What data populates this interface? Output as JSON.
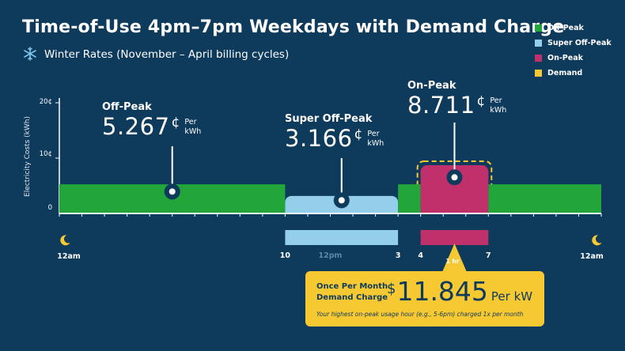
{
  "header": {
    "title": "Time-of-Use 4pm–7pm Weekdays with Demand Charge",
    "subtitle": "Winter Rates (November – April billing cycles)",
    "subtitle_icon": "snowflake-icon"
  },
  "legend": [
    {
      "label": "Off-Peak",
      "color": "#22a63a"
    },
    {
      "label": "Super Off-Peak",
      "color": "#93cfeb"
    },
    {
      "label": "On-Peak",
      "color": "#c0306a"
    },
    {
      "label": "Demand",
      "color": "#f6c832"
    }
  ],
  "chart_data": {
    "type": "area",
    "ylabel": "Electricity Costs (kWh)",
    "y_ticks": [
      "20¢",
      "10¢",
      "0"
    ],
    "ylim": [
      0,
      20
    ],
    "x_ticks": [
      {
        "label": "12am",
        "hour": 0
      },
      {
        "label": "10",
        "hour": 10
      },
      {
        "label": "12pm",
        "hour": 12
      },
      {
        "label": "3",
        "hour": 15
      },
      {
        "label": "4",
        "hour": 16
      },
      {
        "label": "7",
        "hour": 19
      },
      {
        "label": "12am",
        "hour": 24
      }
    ],
    "xlim": [
      0,
      24
    ],
    "periods": [
      {
        "name": "Off-Peak",
        "start": 0,
        "end": 10,
        "rate": 5.267,
        "color": "#22a63a"
      },
      {
        "name": "Super Off-Peak",
        "start": 10,
        "end": 15,
        "rate": 3.166,
        "color": "#93cfeb"
      },
      {
        "name": "Off-Peak",
        "start": 15,
        "end": 16,
        "rate": 5.267,
        "color": "#22a63a"
      },
      {
        "name": "On-Peak",
        "start": 16,
        "end": 19,
        "rate": 8.711,
        "color": "#c0306a"
      },
      {
        "name": "Off-Peak",
        "start": 19,
        "end": 24,
        "rate": 5.267,
        "color": "#22a63a"
      }
    ],
    "demand_window": {
      "start": 16,
      "end": 19,
      "color": "#f6c832"
    },
    "timeline_bars": [
      {
        "start": 10,
        "end": 15,
        "color": "#93cfeb"
      },
      {
        "start": 16,
        "end": 19,
        "color": "#c0306a"
      }
    ]
  },
  "labels": {
    "offpeak": {
      "name": "Off-Peak",
      "value": "5.267",
      "cent": "¢",
      "unit1": "Per",
      "unit2": "kWh"
    },
    "superoff": {
      "name": "Super Off-Peak",
      "value": "3.166",
      "cent": "¢",
      "unit1": "Per",
      "unit2": "kWh"
    },
    "onpeak": {
      "name": "On-Peak",
      "value": "8.711",
      "cent": "¢",
      "unit1": "Per",
      "unit2": "kWh"
    }
  },
  "demand": {
    "window_label": "1 hr",
    "title1": "Once Per Month",
    "title2": "Demand Charge",
    "dollar": "$",
    "value": "11.845",
    "unit": "Per kW",
    "note": "Your highest on-peak usage hour (e.g., 5-6pm) charged 1x per month"
  }
}
